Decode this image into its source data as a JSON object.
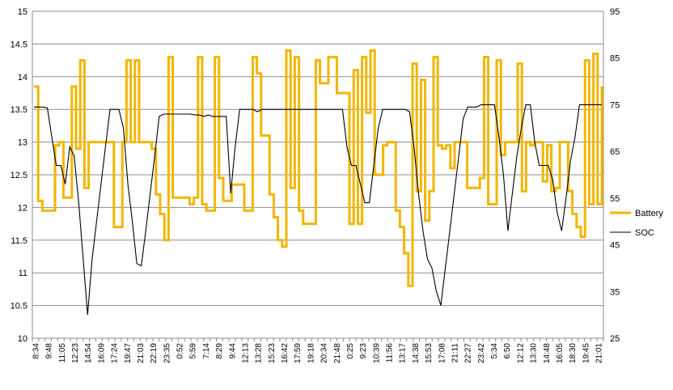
{
  "chart_data": {
    "type": "line",
    "title": "",
    "xlabel": "",
    "ylabel": "",
    "y_left": {
      "lim": [
        10,
        15
      ],
      "ticks": [
        "10",
        "10.5",
        "11",
        "11.5",
        "12",
        "12.5",
        "13",
        "13.5",
        "14",
        "14.5",
        "15"
      ]
    },
    "y_right": {
      "lim": [
        25,
        95
      ],
      "ticks": [
        "25",
        "35",
        "45",
        "55",
        "65",
        "75",
        "85",
        "95"
      ]
    },
    "grid": "horizontal",
    "legend_position": "right",
    "x_ticks": [
      "8:34",
      "9:48",
      "11:05",
      "12:23",
      "14:54",
      "16:09",
      "17:24",
      "19:47",
      "21:03",
      "22:19",
      "23:35",
      "0:52",
      "5:59",
      "7:14",
      "8:29",
      "9:44",
      "12:13",
      "13:28",
      "15:23",
      "16:42",
      "17:59",
      "19:18",
      "20:34",
      "21:48",
      "0:25",
      "9:23",
      "10:39",
      "11:56",
      "13:17",
      "14:38",
      "15:53",
      "17:08",
      "21:11",
      "22:27",
      "23:42",
      "5:34",
      "6:50",
      "12:12",
      "13:30",
      "14:48",
      "16:05",
      "18:30",
      "19:45",
      "21:01"
    ],
    "series": [
      {
        "name": "Battery",
        "axis": "left",
        "color": "#f2b600",
        "values": [
          13.85,
          12.1,
          11.95,
          11.95,
          11.95,
          12.95,
          13.0,
          12.15,
          12.15,
          13.85,
          12.9,
          14.25,
          12.3,
          13.0,
          13.0,
          13.0,
          13.0,
          13.0,
          13.0,
          11.7,
          11.7,
          13.0,
          14.25,
          13.0,
          14.25,
          13.0,
          13.0,
          13.0,
          12.9,
          12.2,
          11.9,
          11.5,
          14.3,
          12.15,
          12.15,
          12.15,
          12.15,
          12.05,
          12.15,
          14.3,
          12.05,
          11.95,
          11.95,
          14.3,
          12.45,
          12.1,
          12.1,
          12.35,
          12.35,
          12.35,
          11.95,
          11.95,
          14.3,
          14.05,
          13.1,
          13.1,
          12.2,
          11.85,
          11.5,
          11.4,
          14.4,
          12.3,
          14.3,
          11.95,
          11.75,
          11.75,
          11.75,
          14.25,
          13.9,
          13.9,
          14.3,
          14.3,
          13.75,
          13.75,
          13.75,
          11.75,
          14.1,
          11.75,
          14.3,
          13.45,
          14.4,
          12.5,
          12.5,
          12.95,
          13.0,
          13.0,
          11.95,
          11.7,
          11.3,
          10.8,
          14.2,
          12.25,
          13.95,
          11.8,
          12.25,
          14.3,
          12.95,
          12.9,
          12.95,
          12.6,
          13.0,
          13.0,
          13.0,
          12.3,
          12.3,
          12.3,
          12.45,
          14.3,
          12.05,
          12.05,
          14.25,
          12.8,
          13.0,
          13.0,
          13.0,
          14.2,
          12.25,
          13.0,
          12.95,
          13.0,
          13.0,
          12.4,
          12.95,
          12.25,
          12.3,
          13.0,
          13.0,
          12.25,
          11.9,
          11.7,
          11.55,
          14.25,
          12.05,
          14.35,
          12.05,
          13.85
        ],
        "label_hint": "Battery"
      },
      {
        "name": "SOC",
        "axis": "right",
        "color": "#000000",
        "values": [
          74.5,
          74.5,
          74.5,
          74.3,
          68,
          62,
          62,
          58,
          66,
          64,
          54,
          42,
          30,
          42,
          50,
          58,
          66,
          74,
          74,
          74,
          70,
          58,
          50,
          41,
          40.5,
          48,
          56,
          64,
          72.5,
          73,
          73,
          73,
          73,
          73,
          73,
          73,
          72.8,
          72.8,
          72.5,
          72.8,
          72.5,
          72.5,
          72.5,
          72.5,
          56,
          66,
          74,
          74,
          74,
          74,
          73.5,
          74,
          74,
          74,
          74,
          74,
          74,
          74,
          74,
          74,
          74,
          74,
          74,
          74,
          74,
          74,
          74,
          74,
          74,
          74,
          66,
          62,
          62,
          58,
          54,
          54,
          62,
          70,
          74,
          74,
          74,
          74,
          74,
          74,
          73.5,
          66,
          56,
          48,
          42,
          40,
          35,
          32,
          40,
          48,
          56,
          64,
          72,
          74.5,
          74.5,
          74.5,
          75,
          75,
          75,
          75,
          68,
          60,
          48,
          56,
          64,
          70,
          75,
          75,
          67,
          62,
          62,
          62,
          59,
          52,
          48,
          55,
          63,
          68,
          75,
          75,
          75,
          75,
          75,
          75
        ],
        "label_hint": "SOC"
      }
    ],
    "legend": [
      "Battery",
      "SOC"
    ]
  }
}
